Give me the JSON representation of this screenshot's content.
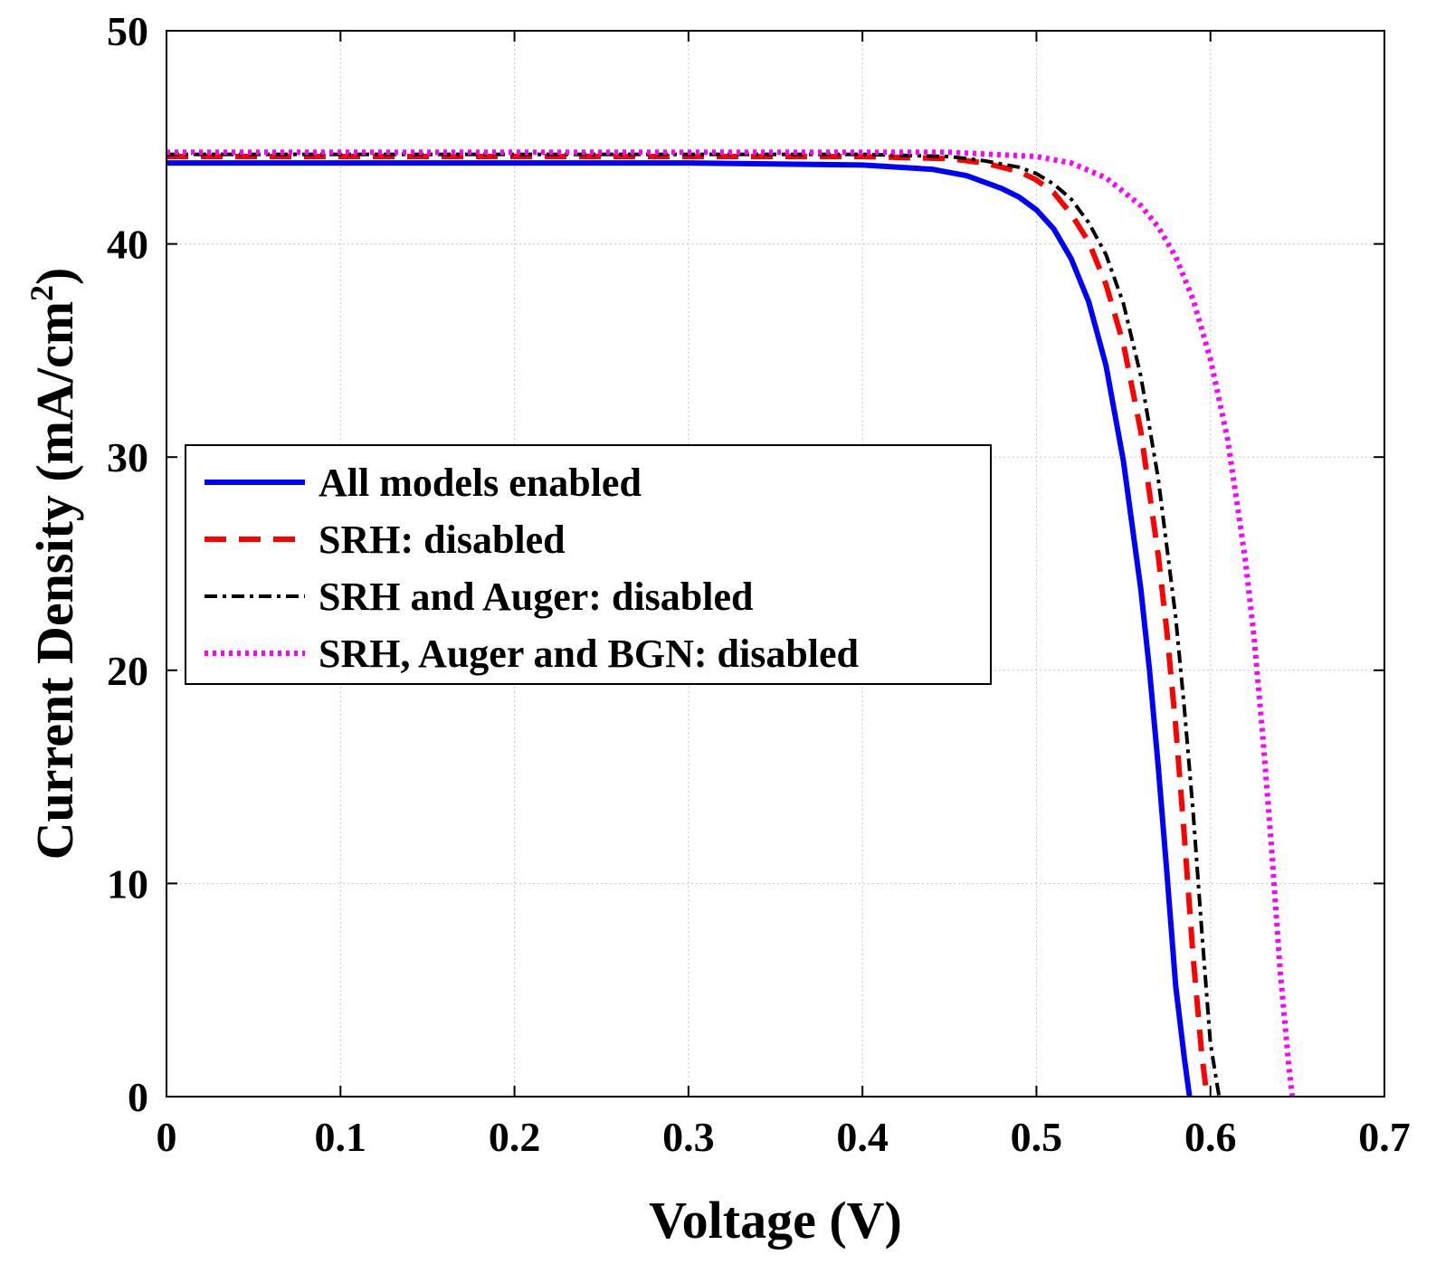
{
  "chart_data": {
    "type": "line",
    "title": "",
    "xlabel": "Voltage (V)",
    "ylabel_main": "Current Density (mA/cm",
    "ylabel_sup": "2",
    "ylabel_close": ")",
    "xlim": [
      0,
      0.7
    ],
    "ylim": [
      0,
      50
    ],
    "xticks": [
      0,
      0.1,
      0.2,
      0.3,
      0.4,
      0.5,
      0.6,
      0.7
    ],
    "xtick_labels": [
      "0",
      "0.1",
      "0.2",
      "0.3",
      "0.4",
      "0.5",
      "0.6",
      "0.7"
    ],
    "yticks": [
      0,
      10,
      20,
      30,
      40,
      50
    ],
    "ytick_labels": [
      "0",
      "10",
      "20",
      "30",
      "40",
      "50"
    ],
    "grid": true,
    "legend_position": "center-left",
    "series": [
      {
        "name": "All models enabled",
        "color": "#0000ff",
        "style": "solid",
        "x": [
          0,
          0.1,
          0.2,
          0.3,
          0.4,
          0.44,
          0.46,
          0.48,
          0.49,
          0.5,
          0.51,
          0.52,
          0.53,
          0.54,
          0.55,
          0.56,
          0.565,
          0.57,
          0.575,
          0.58,
          0.585,
          0.588
        ],
        "y": [
          43.8,
          43.8,
          43.8,
          43.8,
          43.7,
          43.5,
          43.2,
          42.6,
          42.2,
          41.6,
          40.7,
          39.3,
          37.3,
          34.3,
          29.8,
          23.8,
          20.0,
          15.5,
          10.5,
          5.2,
          1.8,
          0
        ]
      },
      {
        "name": "SRH: disabled",
        "color": "#ff0000",
        "style": "dashed",
        "x": [
          0,
          0.1,
          0.2,
          0.3,
          0.4,
          0.45,
          0.47,
          0.49,
          0.5,
          0.51,
          0.52,
          0.53,
          0.54,
          0.55,
          0.56,
          0.57,
          0.575,
          0.58,
          0.585,
          0.59,
          0.595,
          0.598
        ],
        "y": [
          44.1,
          44.1,
          44.1,
          44.1,
          44.1,
          44.0,
          43.8,
          43.4,
          43.0,
          42.4,
          41.4,
          40.1,
          38.1,
          35.3,
          31.2,
          25.4,
          21.8,
          17.4,
          12.2,
          6.6,
          2.0,
          0
        ]
      },
      {
        "name": "SRH and Auger: disabled",
        "color": "#000000",
        "style": "dashdot",
        "x": [
          0,
          0.1,
          0.2,
          0.3,
          0.4,
          0.45,
          0.47,
          0.49,
          0.5,
          0.51,
          0.52,
          0.53,
          0.54,
          0.55,
          0.56,
          0.57,
          0.58,
          0.585,
          0.59,
          0.595,
          0.6,
          0.605
        ],
        "y": [
          44.2,
          44.2,
          44.2,
          44.2,
          44.2,
          44.1,
          43.9,
          43.6,
          43.3,
          42.8,
          42.1,
          41.0,
          39.5,
          37.2,
          33.8,
          29.0,
          22.5,
          18.2,
          13.4,
          7.8,
          2.5,
          0
        ]
      },
      {
        "name": "SRH, Auger and BGN: disabled",
        "color": "#ff00ff",
        "style": "dotted",
        "x": [
          0,
          0.1,
          0.2,
          0.3,
          0.4,
          0.45,
          0.5,
          0.52,
          0.54,
          0.56,
          0.57,
          0.58,
          0.59,
          0.6,
          0.61,
          0.62,
          0.625,
          0.63,
          0.635,
          0.64,
          0.645,
          0.647
        ],
        "y": [
          44.3,
          44.3,
          44.3,
          44.3,
          44.3,
          44.3,
          44.1,
          43.8,
          43.1,
          41.8,
          40.8,
          39.4,
          37.4,
          34.6,
          30.8,
          25.2,
          21.6,
          17.0,
          11.8,
          6.0,
          1.5,
          0
        ]
      }
    ]
  }
}
